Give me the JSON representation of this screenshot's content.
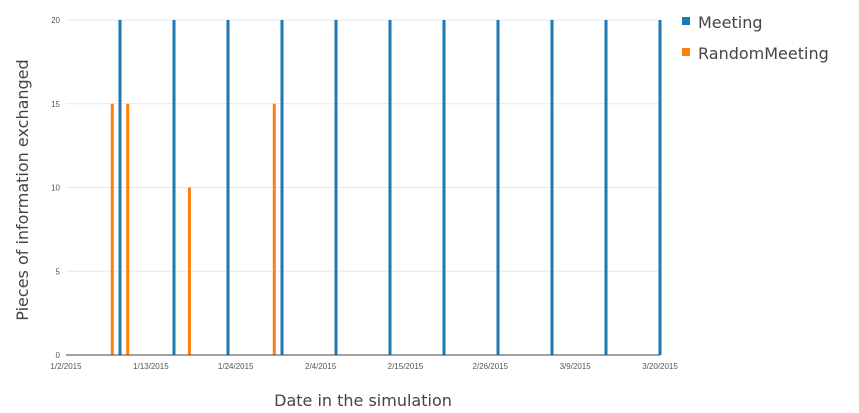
{
  "chart_data": {
    "type": "bar",
    "title": "",
    "xlabel": "Date in the simulation",
    "ylabel": "Pieces of information exchanged",
    "x_ticks": [
      "1/2/2015",
      "1/13/2015",
      "1/24/2015",
      "2/4/2015",
      "2/15/2015",
      "2/26/2015",
      "3/9/2015",
      "3/20/2015"
    ],
    "y_ticks": [
      "0",
      "5",
      "10",
      "15",
      "20"
    ],
    "xlim": [
      "2015-01-02",
      "2015-03-20"
    ],
    "ylim": [
      0,
      20
    ],
    "grid": "horizontal",
    "legend": "top-right",
    "series": [
      {
        "name": "Meeting",
        "color": "#1f77b4",
        "points": [
          {
            "x": "2015-01-09",
            "y": 20
          },
          {
            "x": "2015-01-16",
            "y": 20
          },
          {
            "x": "2015-01-23",
            "y": 20
          },
          {
            "x": "2015-01-30",
            "y": 20
          },
          {
            "x": "2015-02-06",
            "y": 20
          },
          {
            "x": "2015-02-13",
            "y": 20
          },
          {
            "x": "2015-02-20",
            "y": 20
          },
          {
            "x": "2015-02-27",
            "y": 20
          },
          {
            "x": "2015-03-06",
            "y": 20
          },
          {
            "x": "2015-03-13",
            "y": 20
          },
          {
            "x": "2015-03-20",
            "y": 20
          }
        ]
      },
      {
        "name": "RandomMeeting",
        "color": "#ff7f0e",
        "points": [
          {
            "x": "2015-01-08",
            "y": 15
          },
          {
            "x": "2015-01-10",
            "y": 15
          },
          {
            "x": "2015-01-18",
            "y": 10
          },
          {
            "x": "2015-01-29",
            "y": 15
          }
        ]
      }
    ]
  }
}
